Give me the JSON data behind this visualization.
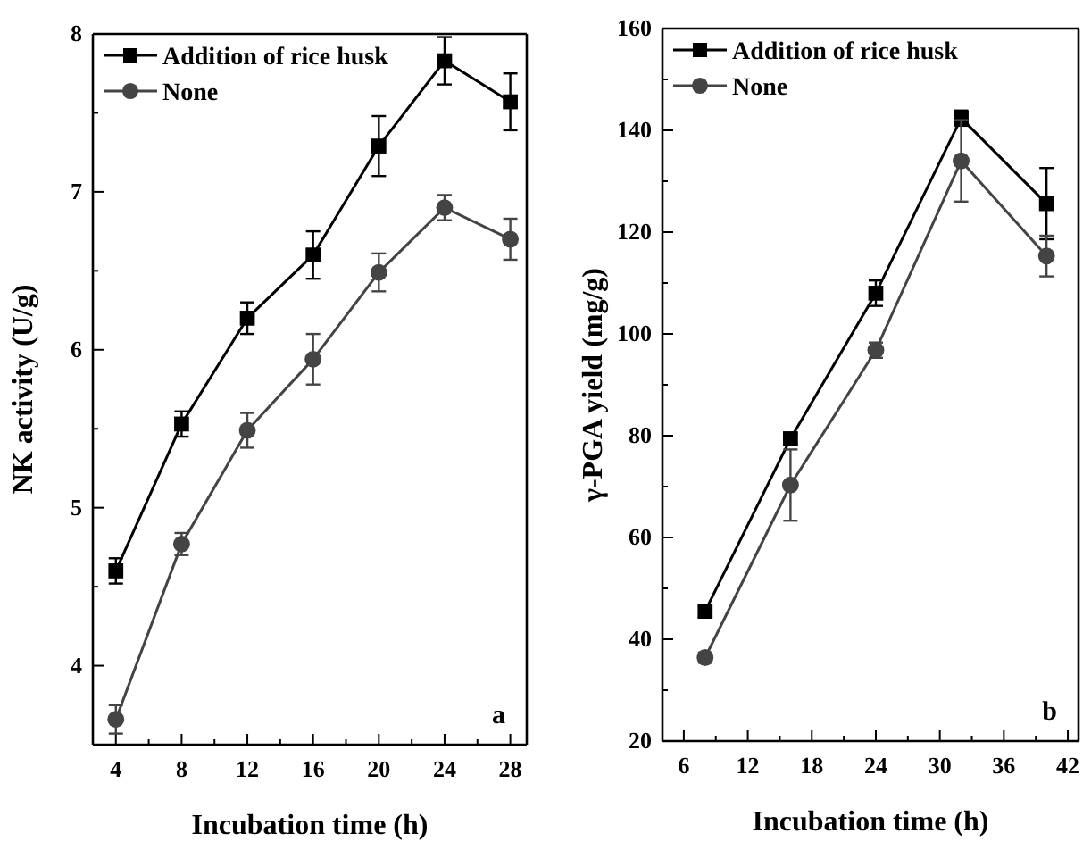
{
  "chart_data": [
    {
      "type": "line",
      "xlabel": "Incubation time (h)",
      "ylabel": "NK activity (U/g)",
      "annotations": [
        "a"
      ],
      "legend": "top left",
      "xlim": [
        2.6,
        29
      ],
      "ylim": [
        3.5,
        8
      ],
      "xticks": [
        4,
        {
          "value": 6,
          "label": null
        },
        8,
        {
          "value": 10,
          "label": null
        },
        12,
        {
          "value": 14,
          "label": null
        },
        16,
        {
          "value": 18,
          "label": null
        },
        20,
        {
          "value": 22,
          "label": null
        },
        24,
        {
          "value": 26,
          "label": null
        },
        28
      ],
      "yticks": [
        {
          "value": 3.5,
          "label": null
        },
        4,
        {
          "value": 4.5,
          "label": null
        },
        5,
        {
          "value": 5.5,
          "label": null
        },
        6,
        {
          "value": 6.5,
          "label": null
        },
        7,
        {
          "value": 7.5,
          "label": null
        },
        8
      ],
      "x": [
        4,
        8,
        12,
        16,
        20,
        24,
        28
      ],
      "series": [
        {
          "name": "Addition of rice husk",
          "color": "#000000",
          "marker": "square",
          "values": [
            4.6,
            5.53,
            6.2,
            6.6,
            7.29,
            7.83,
            7.57
          ],
          "errors": [
            0.08,
            0.08,
            0.1,
            0.15,
            0.19,
            0.15,
            0.18
          ]
        },
        {
          "name": "None",
          "color": "#444444",
          "marker": "circle",
          "values": [
            3.66,
            4.77,
            5.49,
            5.94,
            6.49,
            6.9,
            6.7
          ],
          "errors": [
            0.09,
            0.07,
            0.11,
            0.16,
            0.12,
            0.08,
            0.13
          ]
        }
      ]
    },
    {
      "type": "line",
      "xlabel": "Incubation time (h)",
      "ylabel": "γ-PGA yield (mg/g)",
      "annotations": [
        "b"
      ],
      "legend": "top left",
      "xlim": [
        4,
        43
      ],
      "ylim": [
        20,
        160
      ],
      "xticks": [
        6,
        {
          "value": 9,
          "label": null
        },
        12,
        {
          "value": 15,
          "label": null
        },
        18,
        {
          "value": 21,
          "label": null
        },
        24,
        {
          "value": 27,
          "label": null
        },
        30,
        {
          "value": 33,
          "label": null
        },
        36,
        {
          "value": 39,
          "label": null
        },
        42
      ],
      "yticks": [
        20,
        {
          "value": 30,
          "label": null
        },
        40,
        {
          "value": 50,
          "label": null
        },
        60,
        {
          "value": 70,
          "label": null
        },
        80,
        {
          "value": 90,
          "label": null
        },
        100,
        {
          "value": 110,
          "label": null
        },
        120,
        {
          "value": 130,
          "label": null
        },
        140,
        {
          "value": 150,
          "label": null
        },
        160
      ],
      "x": [
        8,
        16,
        24,
        32,
        40
      ],
      "series": [
        {
          "name": "Addition of rice husk",
          "color": "#000000",
          "marker": "square",
          "values": [
            45.5,
            79.4,
            108,
            142.4,
            125.6
          ],
          "errors": [
            1,
            1,
            2.5,
            1.5,
            7
          ]
        },
        {
          "name": "None",
          "color": "#444444",
          "marker": "circle",
          "values": [
            36.4,
            70.3,
            96.8,
            134,
            115.3
          ],
          "errors": [
            1,
            7,
            1.5,
            8,
            4
          ]
        }
      ]
    }
  ]
}
